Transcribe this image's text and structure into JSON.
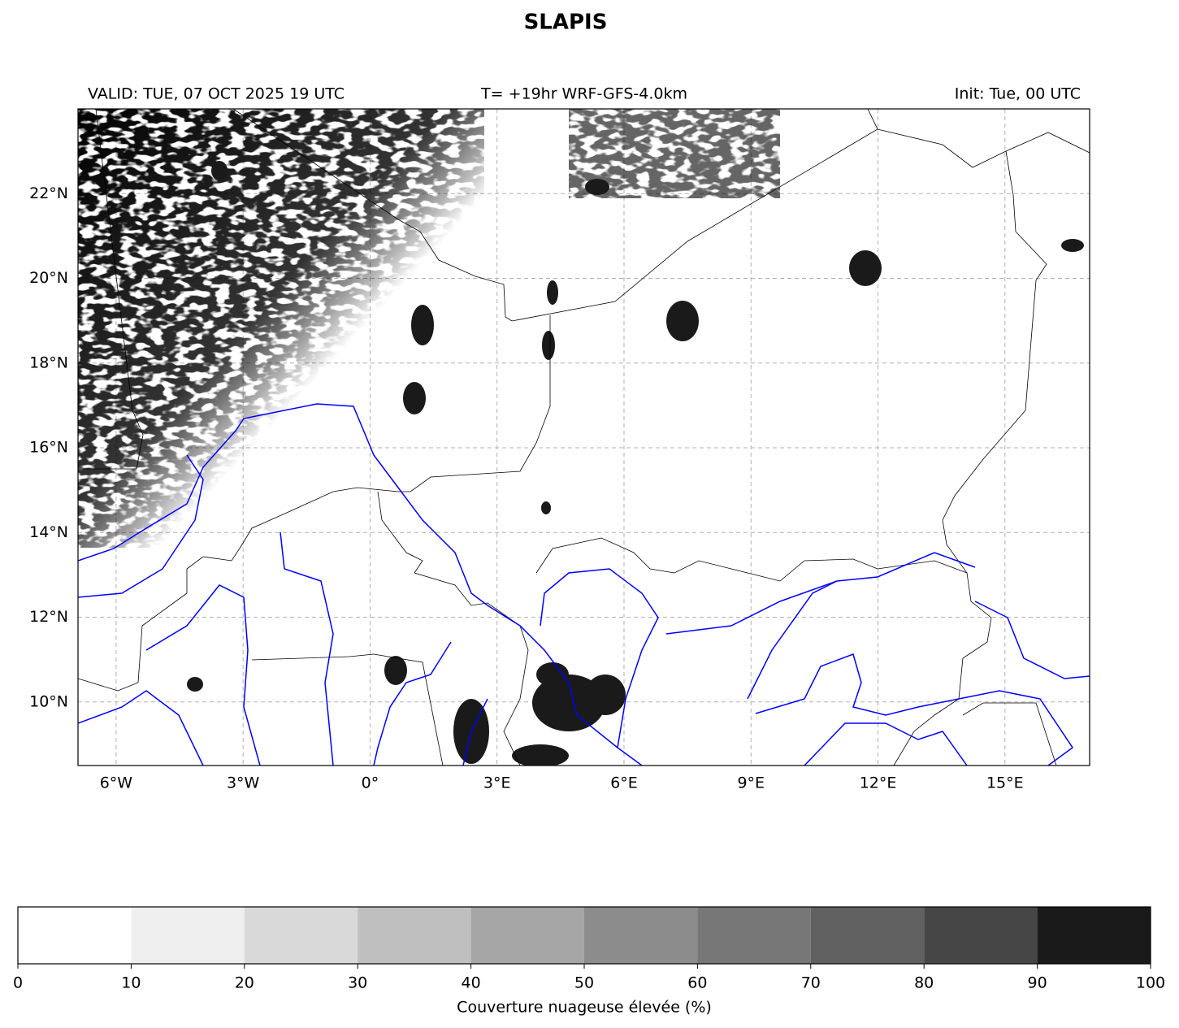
{
  "chart_data": {
    "type": "map",
    "title": "SLAPIS",
    "valid": "VALID: TUE, 07 OCT 2025 19 UTC",
    "model": "T= +19hr WRF-GFS-4.0km",
    "init": "Init: Tue, 00 UTC",
    "xlim": [
      -6.9,
      17
    ],
    "ylim": [
      8.5,
      24
    ],
    "xticks": [
      {
        "value": -6,
        "label": "6°W"
      },
      {
        "value": -3,
        "label": "3°W"
      },
      {
        "value": 0,
        "label": "0°"
      },
      {
        "value": 3,
        "label": "3°E"
      },
      {
        "value": 6,
        "label": "6°E"
      },
      {
        "value": 9,
        "label": "9°E"
      },
      {
        "value": 12,
        "label": "12°E"
      },
      {
        "value": 15,
        "label": "15°E"
      }
    ],
    "yticks": [
      {
        "value": 10,
        "label": "10°N"
      },
      {
        "value": 12,
        "label": "12°N"
      },
      {
        "value": 14,
        "label": "14°N"
      },
      {
        "value": 16,
        "label": "16°N"
      },
      {
        "value": 18,
        "label": "18°N"
      },
      {
        "value": 20,
        "label": "20°N"
      },
      {
        "value": 22,
        "label": "22°N"
      }
    ],
    "grid": true,
    "colorbar": {
      "label": "Couverture nuageuse élevée (%)",
      "ticks": [
        0,
        10,
        20,
        30,
        40,
        50,
        60,
        70,
        80,
        90,
        100
      ],
      "colors": [
        "#ffffff",
        "#efefef",
        "#d9d9d9",
        "#bfbfbf",
        "#a6a6a6",
        "#8c8c8c",
        "#777777",
        "#606060",
        "#464646",
        "#1a1a1a"
      ]
    }
  }
}
